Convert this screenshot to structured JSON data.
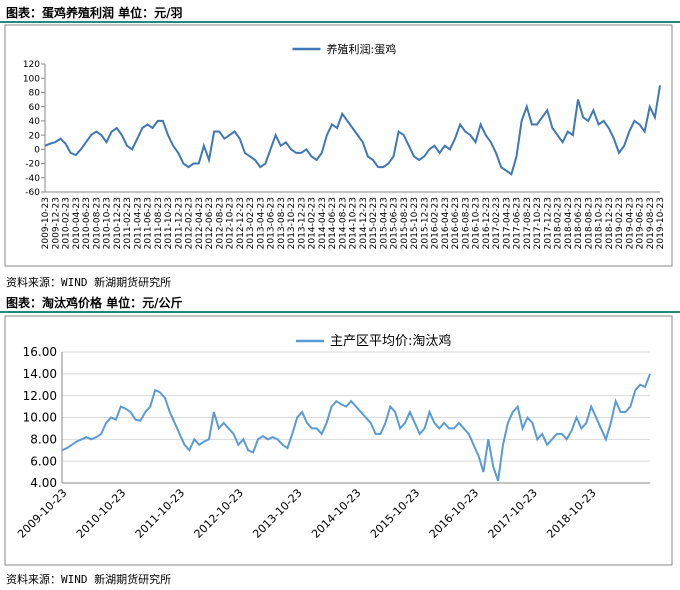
{
  "captions": [
    "图表：蛋鸡养殖利润 单位：元/羽",
    "图表：淘汰鸡价格 单位：元/公斤"
  ],
  "sources": [
    "资料来源：WIND 新湖期货研究所",
    "资料来源：WIND 新湖期货研究所"
  ],
  "chart_data": [
    {
      "type": "line",
      "categories": [
        "2009-10-23",
        null,
        "2009-12-23",
        null,
        "2010-02-23",
        null,
        "2010-04-23",
        null,
        "2010-06-23",
        null,
        "2010-08-23",
        null,
        "2010-10-23",
        null,
        "2010-12-23",
        null,
        "2011-02-23",
        null,
        "2011-04-23",
        null,
        "2011-06-23",
        null,
        "2011-08-23",
        null,
        "2011-10-23",
        null,
        "2011-12-23",
        null,
        "2012-02-23",
        null,
        "2012-04-23",
        null,
        "2012-06-23",
        null,
        "2012-08-23",
        null,
        "2012-10-23",
        null,
        "2012-12-23",
        null,
        "2013-02-23",
        null,
        "2013-04-23",
        null,
        "2013-06-23",
        null,
        "2013-08-23",
        null,
        "2013-10-23",
        null,
        "2013-12-23",
        null,
        "2014-02-23",
        null,
        "2014-04-23",
        null,
        "2014-06-23",
        null,
        "2014-08-23",
        null,
        "2014-10-23",
        null,
        "2014-12-23",
        null,
        "2015-02-23",
        null,
        "2015-04-23",
        null,
        "2015-06-23",
        null,
        "2015-08-23",
        null,
        "2015-10-23",
        null,
        "2015-12-23",
        null,
        "2016-02-23",
        null,
        "2016-04-23",
        null,
        "2016-06-23",
        null,
        "2016-08-23",
        null,
        "2016-10-23",
        null,
        "2016-12-23",
        null,
        "2017-02-23",
        null,
        "2017-04-23",
        null,
        "2017-06-23",
        null,
        "2017-08-23",
        null,
        "2017-10-23",
        null,
        "2017-12-23",
        null,
        "2018-02-23",
        null,
        "2018-04-23",
        null,
        "2018-06-23",
        null,
        "2018-08-23",
        null,
        "2018-10-23",
        null,
        "2018-12-23",
        null,
        "2019-02-23",
        null,
        "2019-04-23",
        null,
        "2019-06-23",
        null,
        "2019-08-23",
        null,
        "2019-10-23"
      ],
      "series": [
        {
          "name": "养殖利润:蛋鸡",
          "color": "#3f78b5",
          "values": [
            5,
            8,
            10,
            15,
            8,
            -5,
            -8,
            0,
            10,
            20,
            25,
            20,
            10,
            25,
            30,
            20,
            5,
            0,
            15,
            30,
            35,
            30,
            40,
            40,
            20,
            5,
            -5,
            -20,
            -25,
            -20,
            -20,
            5,
            -15,
            25,
            25,
            15,
            20,
            25,
            15,
            -5,
            -10,
            -15,
            -25,
            -20,
            0,
            20,
            5,
            10,
            0,
            -5,
            -5,
            0,
            -10,
            -15,
            -5,
            20,
            35,
            30,
            50,
            40,
            30,
            20,
            10,
            -10,
            -15,
            -25,
            -25,
            -20,
            -10,
            25,
            20,
            5,
            -10,
            -15,
            -10,
            0,
            5,
            -5,
            5,
            0,
            15,
            35,
            25,
            20,
            10,
            35,
            20,
            10,
            -5,
            -25,
            -30,
            -35,
            -10,
            40,
            60,
            35,
            35,
            45,
            55,
            30,
            20,
            10,
            25,
            20,
            70,
            45,
            40,
            55,
            35,
            40,
            30,
            15,
            -5,
            5,
            25,
            40,
            35,
            25,
            60,
            45,
            90
          ]
        }
      ],
      "ylim": [
        -60,
        120
      ],
      "yticks": [
        -60,
        -40,
        -20,
        0,
        20,
        40,
        60,
        80,
        100,
        120
      ],
      "grid": false
    },
    {
      "type": "line",
      "categories": [
        "2009-10-23",
        null,
        null,
        null,
        null,
        null,
        null,
        null,
        null,
        null,
        null,
        null,
        "2010-10-23",
        null,
        null,
        null,
        null,
        null,
        null,
        null,
        null,
        null,
        null,
        null,
        "2011-10-23",
        null,
        null,
        null,
        null,
        null,
        null,
        null,
        null,
        null,
        null,
        null,
        "2012-10-23",
        null,
        null,
        null,
        null,
        null,
        null,
        null,
        null,
        null,
        null,
        null,
        "2013-10-23",
        null,
        null,
        null,
        null,
        null,
        null,
        null,
        null,
        null,
        null,
        null,
        "2014-10-23",
        null,
        null,
        null,
        null,
        null,
        null,
        null,
        null,
        null,
        null,
        null,
        "2015-10-23",
        null,
        null,
        null,
        null,
        null,
        null,
        null,
        null,
        null,
        null,
        null,
        "2016-10-23",
        null,
        null,
        null,
        null,
        null,
        null,
        null,
        null,
        null,
        null,
        null,
        "2017-10-23",
        null,
        null,
        null,
        null,
        null,
        null,
        null,
        null,
        null,
        null,
        null,
        "2018-10-23",
        null,
        null,
        null,
        null,
        null,
        null,
        null,
        null,
        null,
        null,
        null,
        null
      ],
      "series": [
        {
          "name": "主产区平均价:淘汰鸡",
          "color": "#5b9bd5",
          "values": [
            7.0,
            7.2,
            7.5,
            7.8,
            8.0,
            8.2,
            8.0,
            8.2,
            8.5,
            9.5,
            10.0,
            9.8,
            11.0,
            10.8,
            10.5,
            9.8,
            9.7,
            10.5,
            11.0,
            12.5,
            12.3,
            11.8,
            10.5,
            9.5,
            8.5,
            7.5,
            7.0,
            8.0,
            7.5,
            7.8,
            8.0,
            10.5,
            9.0,
            9.5,
            9.0,
            8.5,
            7.5,
            8.0,
            7.0,
            6.8,
            8.0,
            8.3,
            8.0,
            8.2,
            8.0,
            7.5,
            7.2,
            8.5,
            10.0,
            10.5,
            9.5,
            9.0,
            9.0,
            8.5,
            9.5,
            11.0,
            11.5,
            11.2,
            11.0,
            11.5,
            11.0,
            10.5,
            10.0,
            9.5,
            8.5,
            8.5,
            9.5,
            11.0,
            10.5,
            9.0,
            9.5,
            10.5,
            9.5,
            8.5,
            9.0,
            10.5,
            9.5,
            9.0,
            9.5,
            9.0,
            9.0,
            9.5,
            9.0,
            8.5,
            7.5,
            6.5,
            5.0,
            8.0,
            5.5,
            4.2,
            7.5,
            9.5,
            10.5,
            11.0,
            9.0,
            10.0,
            9.5,
            8.0,
            8.5,
            7.5,
            8.0,
            8.5,
            8.5,
            8.0,
            8.8,
            10.0,
            9.0,
            9.5,
            11.0,
            10.0,
            9.0,
            8.0,
            9.5,
            11.5,
            10.5,
            10.5,
            11.0,
            12.5,
            13.0,
            12.8,
            14.0
          ]
        }
      ],
      "ylim": [
        4,
        16
      ],
      "yticks": [
        {
          "value": 4,
          "label": "4.00"
        },
        {
          "value": 6,
          "label": "6.00"
        },
        {
          "value": 8,
          "label": "8.00"
        },
        {
          "value": 10,
          "label": "10.00"
        },
        {
          "value": 12,
          "label": "12.00"
        },
        {
          "value": 14,
          "label": "14.00"
        },
        {
          "value": 16,
          "label": "16.00"
        }
      ],
      "grid": true
    }
  ]
}
